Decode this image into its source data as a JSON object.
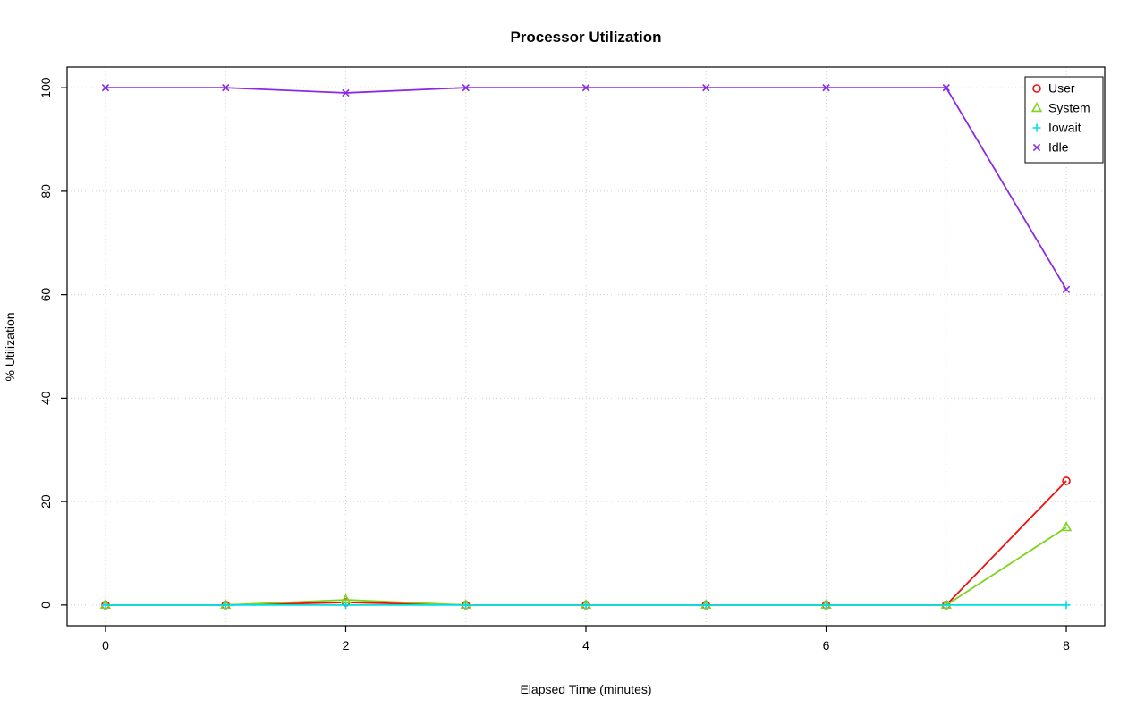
{
  "chart_data": {
    "type": "line",
    "title": "Processor Utilization",
    "xlabel": "Elapsed Time (minutes)",
    "ylabel": "% Utilization",
    "x": [
      0,
      1,
      2,
      3,
      4,
      5,
      6,
      7,
      8
    ],
    "xlim": [
      0,
      8
    ],
    "ylim": [
      0,
      100
    ],
    "x_ticks": [
      0,
      2,
      4,
      6,
      8
    ],
    "y_ticks": [
      0,
      20,
      40,
      60,
      80,
      100
    ],
    "grid_x": [
      0,
      1,
      2,
      3,
      4,
      5,
      6,
      7,
      8
    ],
    "grid_y": [
      0,
      20,
      40,
      60,
      80,
      100
    ],
    "grid": true,
    "legend": {
      "position": "top-right"
    },
    "series": [
      {
        "name": "User",
        "color": "#ee1111",
        "marker": "circle",
        "values": [
          0,
          0,
          0.5,
          0,
          0,
          0,
          0,
          0,
          24
        ]
      },
      {
        "name": "System",
        "color": "#7cd41e",
        "marker": "triangle",
        "values": [
          0,
          0,
          1,
          0,
          0,
          0,
          0,
          0,
          15
        ]
      },
      {
        "name": "Iowait",
        "color": "#00dde6",
        "marker": "plus",
        "values": [
          0,
          0,
          0,
          0,
          0,
          0,
          0,
          0,
          0
        ]
      },
      {
        "name": "Idle",
        "color": "#8a2be2",
        "marker": "x",
        "values": [
          100,
          100,
          99,
          100,
          100,
          100,
          100,
          100,
          61
        ]
      }
    ]
  }
}
